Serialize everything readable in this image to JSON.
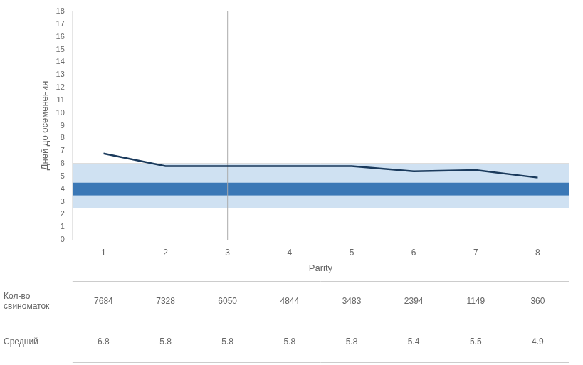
{
  "chart_data": {
    "type": "line",
    "x": [
      1,
      2,
      3,
      4,
      5,
      6,
      7,
      8
    ],
    "values": [
      6.8,
      5.8,
      5.8,
      5.8,
      5.8,
      5.4,
      5.5,
      4.9
    ],
    "color": "#1a3a5c",
    "xlabel": "Parity",
    "ylabel": "Дней до осеменения",
    "xlim": [
      0.5,
      8.5
    ],
    "xticks": [
      1,
      2,
      3,
      4,
      5,
      6,
      7,
      8
    ],
    "ylim": [
      0,
      18
    ],
    "yticks": [
      0,
      1,
      2,
      3,
      4,
      5,
      6,
      7,
      8,
      9,
      10,
      11,
      12,
      13,
      14,
      15,
      16,
      17,
      18
    ],
    "grid": false,
    "bands": [
      {
        "from": 2.5,
        "to": 6.0,
        "color": "#a8c8e8"
      },
      {
        "from": 3.5,
        "to": 4.5,
        "color": "#2166ac"
      }
    ],
    "hlines": [
      {
        "y": 6.0,
        "color": "#bbbbbb"
      }
    ],
    "vlines": [
      {
        "x": 3,
        "color": "#aaaaaa"
      }
    ],
    "table": [
      {
        "label": "Кол-во\nсвиноматок",
        "values": [
          7684,
          7328,
          6050,
          4844,
          3483,
          2394,
          1149,
          360
        ]
      },
      {
        "label": "Средний",
        "values": [
          6.8,
          5.8,
          5.8,
          5.8,
          5.8,
          5.4,
          5.5,
          4.9
        ]
      }
    ]
  }
}
